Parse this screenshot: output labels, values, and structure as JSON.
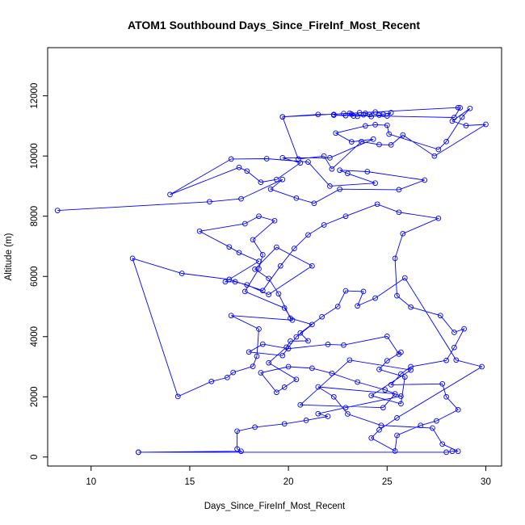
{
  "chart_data": {
    "type": "scatter",
    "title": "ATOM1 Southbound Days_Since_FireInf_Most_Recent",
    "xlabel": "Days_Since_FireInf_Most_Recent",
    "ylabel": "Altitude (m)",
    "xlim": [
      7.8,
      30.8
    ],
    "ylim": [
      -300,
      13600
    ],
    "x_ticks": [
      10,
      15,
      20,
      25,
      30
    ],
    "x_tick_labels": [
      "10",
      "15",
      "20",
      "25",
      "30"
    ],
    "y_ticks": [
      0,
      2000,
      4000,
      6000,
      8000,
      10000,
      12000
    ],
    "y_tick_labels": [
      "0",
      "2000",
      "4000",
      "6000",
      "8000",
      "10000",
      "12000"
    ],
    "grid": false,
    "legend": "none",
    "series_color": "#0000ff",
    "marker": "open-circle",
    "connected": true,
    "series": [
      {
        "points": [
          [
            12.4,
            160
          ],
          [
            28.0,
            160
          ],
          [
            28.3,
            190
          ],
          [
            28.6,
            190
          ],
          [
            27.8,
            430
          ],
          [
            27.3,
            960
          ],
          [
            24.7,
            1050
          ],
          [
            23.0,
            1430
          ],
          [
            22.3,
            2000
          ],
          [
            21.5,
            2330
          ],
          [
            25.4,
            2100
          ],
          [
            24.8,
            1640
          ],
          [
            20.6,
            1730
          ],
          [
            23.1,
            3220
          ],
          [
            26.2,
            2890
          ],
          [
            24.2,
            2040
          ],
          [
            25.7,
            1770
          ],
          [
            25.9,
            2660
          ],
          [
            24.6,
            2910
          ],
          [
            25.0,
            3200
          ],
          [
            25.7,
            3480
          ],
          [
            25.6,
            3420
          ],
          [
            25.0,
            4010
          ],
          [
            22.8,
            3720
          ],
          [
            22.0,
            3740
          ],
          [
            20.0,
            3600
          ],
          [
            18.7,
            3750
          ],
          [
            18.0,
            3490
          ],
          [
            19.7,
            3370
          ],
          [
            20.4,
            3990
          ],
          [
            21.2,
            4400
          ],
          [
            20.1,
            4610
          ],
          [
            19.5,
            5420
          ],
          [
            19.0,
            5930
          ],
          [
            18.3,
            6240
          ],
          [
            19.4,
            6970
          ],
          [
            21.2,
            6350
          ],
          [
            19.0,
            5400
          ],
          [
            17.9,
            5720
          ],
          [
            17.3,
            5820
          ],
          [
            16.8,
            5820
          ],
          [
            18.5,
            6500
          ],
          [
            17.5,
            6790
          ],
          [
            17.0,
            6980
          ],
          [
            15.5,
            7500
          ],
          [
            17.8,
            7750
          ],
          [
            18.5,
            8000
          ],
          [
            19.3,
            7850
          ],
          [
            18.2,
            7220
          ],
          [
            18.7,
            6720
          ],
          [
            18.5,
            6250
          ],
          [
            17.8,
            5500
          ],
          [
            19.8,
            4950
          ],
          [
            20.2,
            4550
          ],
          [
            17.1,
            4700
          ],
          [
            18.5,
            4250
          ],
          [
            18.4,
            3350
          ],
          [
            18.2,
            3010
          ],
          [
            17.2,
            2810
          ],
          [
            16.9,
            2640
          ],
          [
            16.1,
            2510
          ],
          [
            14.4,
            2010
          ],
          [
            12.1,
            6600
          ],
          [
            14.6,
            6100
          ],
          [
            17.0,
            5900
          ],
          [
            18.7,
            5530
          ],
          [
            19.6,
            6350
          ],
          [
            20.3,
            6930
          ],
          [
            21.0,
            7380
          ],
          [
            21.8,
            7710
          ],
          [
            22.9,
            8000
          ],
          [
            24.5,
            8400
          ],
          [
            25.6,
            8130
          ],
          [
            27.6,
            7930
          ],
          [
            25.8,
            7420
          ],
          [
            25.4,
            6600
          ],
          [
            25.5,
            5360
          ],
          [
            26.2,
            4980
          ],
          [
            27.7,
            4700
          ],
          [
            28.4,
            4140
          ],
          [
            28.9,
            4260
          ],
          [
            28.4,
            3640
          ],
          [
            28.0,
            3210
          ],
          [
            26.2,
            3000
          ],
          [
            25.7,
            2760
          ],
          [
            25.2,
            2400
          ],
          [
            27.8,
            2430
          ],
          [
            28.0,
            2000
          ],
          [
            28.6,
            1570
          ],
          [
            27.5,
            1200
          ],
          [
            26.7,
            1050
          ],
          [
            25.5,
            720
          ],
          [
            25.4,
            200
          ],
          [
            24.2,
            630
          ],
          [
            24.6,
            900
          ],
          [
            25.5,
            1300
          ],
          [
            29.8,
            3000
          ],
          [
            28.5,
            3220
          ],
          [
            25.9,
            5950
          ],
          [
            24.4,
            5280
          ],
          [
            23.5,
            5020
          ],
          [
            23.8,
            5500
          ],
          [
            22.9,
            5520
          ],
          [
            22.5,
            5000
          ],
          [
            21.7,
            4660
          ],
          [
            20.6,
            4120
          ],
          [
            21.0,
            3860
          ],
          [
            20.1,
            3850
          ],
          [
            19.9,
            3650
          ],
          [
            19.0,
            3130
          ],
          [
            20.4,
            2580
          ],
          [
            19.8,
            2320
          ],
          [
            19.4,
            2150
          ],
          [
            18.6,
            2800
          ],
          [
            20.0,
            3000
          ],
          [
            21.2,
            2950
          ],
          [
            22.2,
            2780
          ],
          [
            23.5,
            2490
          ],
          [
            24.9,
            2230
          ],
          [
            25.7,
            2020
          ],
          [
            22.9,
            1640
          ],
          [
            21.5,
            1440
          ],
          [
            22.0,
            1350
          ],
          [
            20.9,
            1220
          ],
          [
            19.8,
            1100
          ],
          [
            18.3,
            990
          ],
          [
            17.4,
            860
          ],
          [
            17.4,
            270
          ],
          [
            17.6,
            190
          ],
          [
            12.4,
            160
          ]
        ]
      },
      {
        "points": [
          [
            8.3,
            8190
          ],
          [
            16.0,
            8480
          ],
          [
            17.6,
            8580
          ],
          [
            19.7,
            9220
          ],
          [
            19.1,
            8900
          ],
          [
            20.4,
            8600
          ],
          [
            21.3,
            8430
          ],
          [
            22.6,
            8900
          ],
          [
            25.6,
            8880
          ],
          [
            26.9,
            9200
          ],
          [
            24.0,
            9480
          ],
          [
            22.6,
            9530
          ],
          [
            23.0,
            9420
          ],
          [
            24.4,
            9100
          ],
          [
            22.1,
            9000
          ],
          [
            21.0,
            9800
          ],
          [
            18.9,
            9910
          ],
          [
            17.1,
            9900
          ],
          [
            14.0,
            8720
          ],
          [
            17.5,
            9620
          ],
          [
            17.9,
            9500
          ],
          [
            18.6,
            9130
          ],
          [
            19.4,
            9220
          ],
          [
            20.6,
            9770
          ],
          [
            19.7,
            9940
          ],
          [
            22.1,
            9940
          ],
          [
            24.3,
            10560
          ],
          [
            23.2,
            10470
          ],
          [
            22.4,
            10760
          ],
          [
            23.9,
            11000
          ],
          [
            24.4,
            11040
          ],
          [
            25.0,
            11020
          ],
          [
            25.1,
            10730
          ],
          [
            27.6,
            10220
          ],
          [
            28.0,
            10480
          ],
          [
            28.8,
            11290
          ],
          [
            29.2,
            11580
          ],
          [
            28.3,
            11160
          ],
          [
            29.0,
            11010
          ],
          [
            30.0,
            11050
          ],
          [
            27.4,
            10000
          ],
          [
            25.8,
            10700
          ],
          [
            25.2,
            10370
          ],
          [
            24.6,
            10380
          ],
          [
            23.7,
            10480
          ],
          [
            22.2,
            9570
          ],
          [
            21.8,
            10000
          ],
          [
            20.5,
            9900
          ],
          [
            19.7,
            11300
          ],
          [
            21.5,
            11380
          ],
          [
            22.3,
            11380
          ],
          [
            22.8,
            11410
          ],
          [
            23.1,
            11420
          ],
          [
            23.3,
            11330
          ],
          [
            23.6,
            11440
          ],
          [
            23.9,
            11420
          ],
          [
            24.1,
            11380
          ],
          [
            24.4,
            11460
          ],
          [
            24.8,
            11390
          ],
          [
            25.2,
            11440
          ],
          [
            25.0,
            11330
          ],
          [
            24.6,
            11360
          ],
          [
            24.2,
            11310
          ],
          [
            23.8,
            11370
          ],
          [
            23.5,
            11320
          ],
          [
            23.2,
            11390
          ],
          [
            22.9,
            11340
          ],
          [
            22.3,
            11360
          ],
          [
            28.4,
            11280
          ],
          [
            28.7,
            11600
          ],
          [
            28.6,
            11610
          ],
          [
            19.7,
            11300
          ]
        ]
      }
    ]
  }
}
